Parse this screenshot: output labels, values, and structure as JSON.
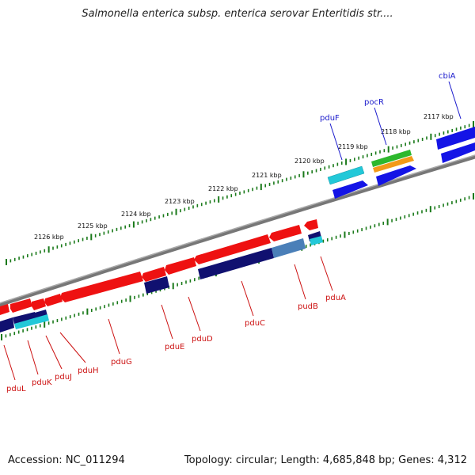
{
  "title": "Salmonella enterica subsp. enterica serovar Enteritidis str....",
  "footer": {
    "accession": "Accession: NC_011294",
    "summary": "Topology: circular; Length: 4,685,848 bp; Genes: 4,312"
  },
  "kbp_labels": [
    "2126 kbp",
    "2125 kbp",
    "2124 kbp",
    "2123 kbp",
    "2122 kbp",
    "2121 kbp",
    "2120 kbp",
    "2119 kbp",
    "2118 kbp",
    "2117 kbp"
  ],
  "upper_genes": [
    "pduF",
    "pocR",
    "cbiA"
  ],
  "lower_genes": [
    "pduL",
    "pduK",
    "pduJ",
    "pduH",
    "pduG",
    "pduE",
    "pduD",
    "pduC",
    "pudB",
    "pduA"
  ],
  "colors": {
    "red": "#ee1111",
    "navy": "#101070",
    "blue": "#1414e6",
    "cyan": "#22c8d8",
    "steel": "#4a7fb8",
    "green": "#2db82d",
    "orange": "#f29a18",
    "tick": "#1a7a1a",
    "backbone": "#888888",
    "upper_label": "#1a1acc",
    "lower_label": "#cc1111"
  }
}
